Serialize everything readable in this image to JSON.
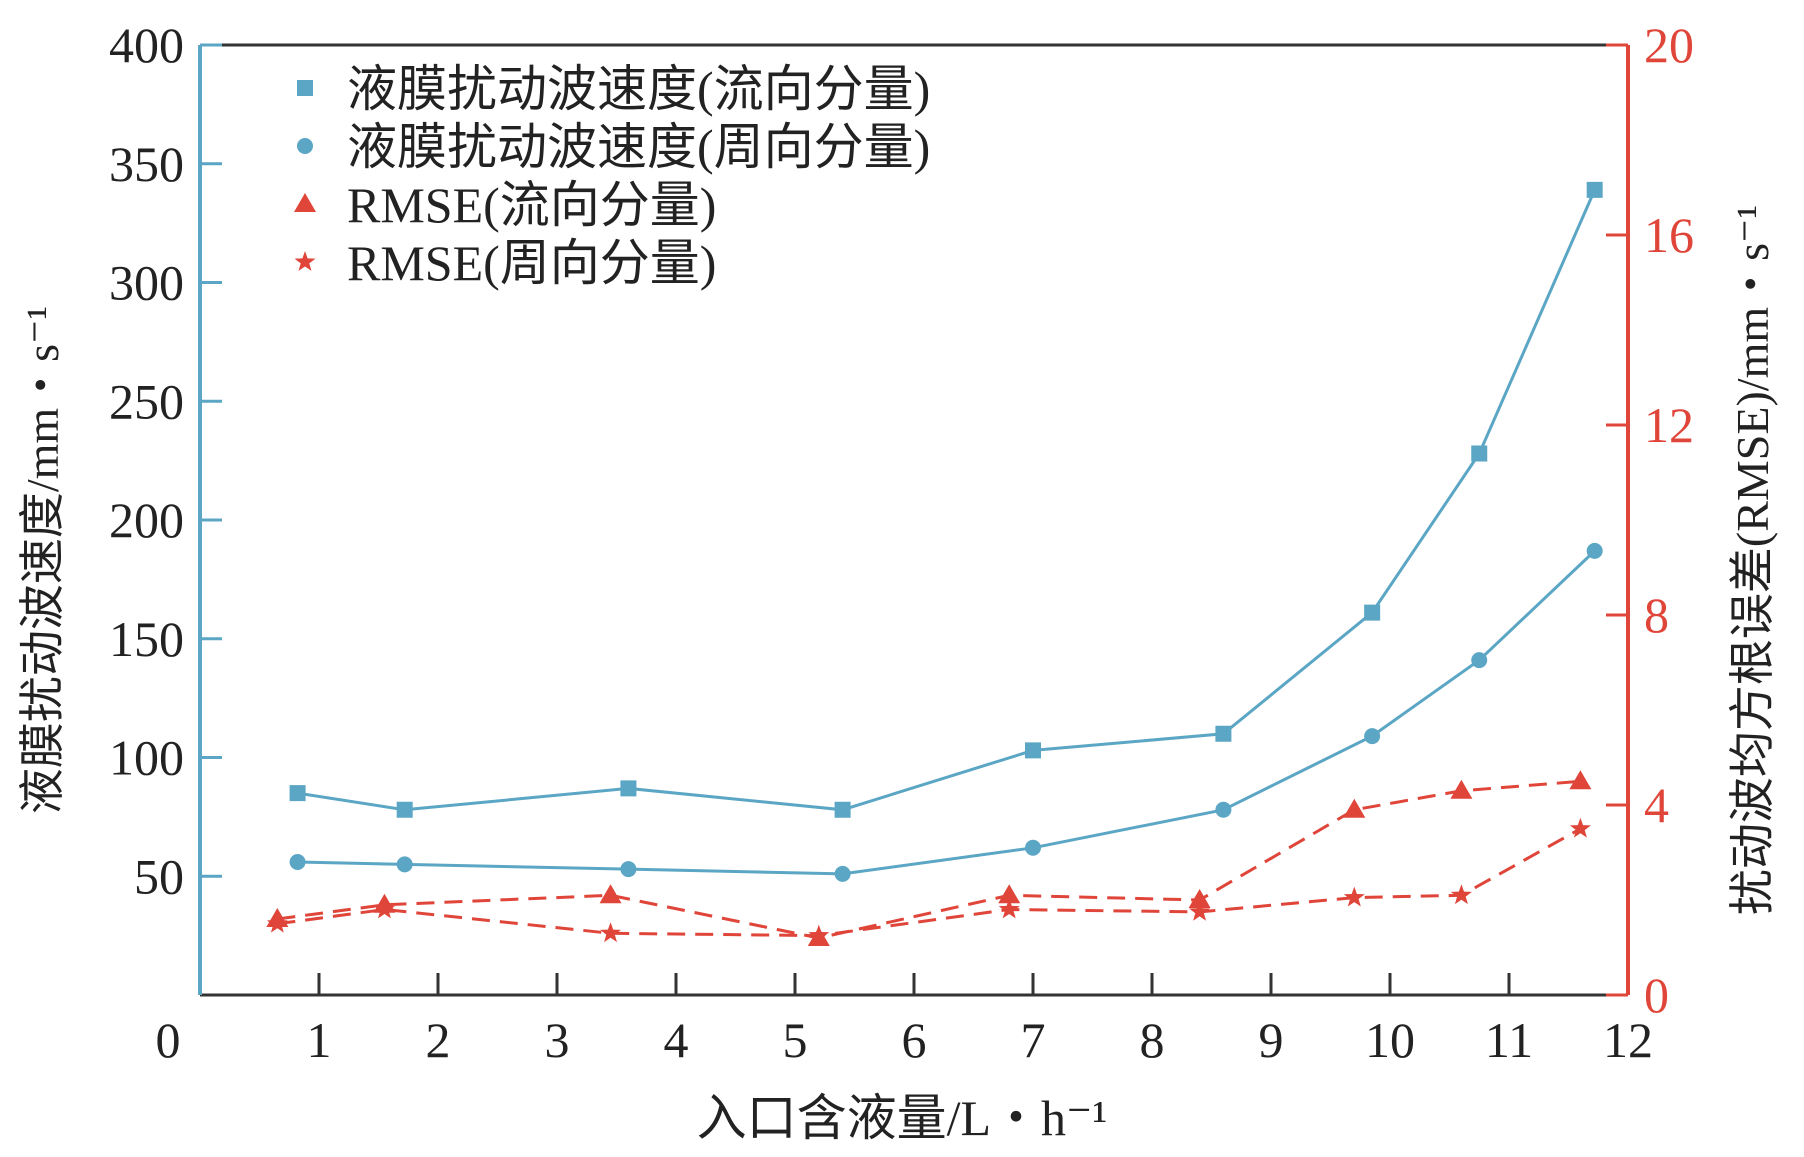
{
  "chart_data": {
    "type": "line",
    "x_axis": {
      "label": "入口含液量/L・h⁻¹",
      "range": [
        0,
        12
      ],
      "ticks": [
        0,
        1,
        2,
        3,
        4,
        5,
        6,
        7,
        8,
        9,
        10,
        11,
        12
      ]
    },
    "y_axis_left": {
      "label": "液膜扰动波速度/mm・s⁻¹",
      "range": [
        0,
        400
      ],
      "ticks": [
        50,
        100,
        150,
        200,
        250,
        300,
        350,
        400
      ],
      "color": "#5aa6c4"
    },
    "y_axis_right": {
      "label": "扰动波均方根误差(RMSE)/mm・s⁻¹",
      "range": [
        0,
        20
      ],
      "ticks": [
        0,
        4,
        8,
        12,
        16,
        20
      ],
      "color": "#e0453a"
    },
    "legend_position": "top-left",
    "series": [
      {
        "name": "液膜扰动波速度(流向分量)",
        "axis": "left",
        "marker": "square",
        "line": "solid",
        "color": "#5aa6c4",
        "x": [
          0.82,
          1.72,
          3.6,
          5.4,
          7.0,
          8.6,
          9.85,
          10.75,
          11.72
        ],
        "y": [
          85,
          78,
          87,
          78,
          103,
          110,
          161,
          228,
          339
        ]
      },
      {
        "name": "液膜扰动波速度(周向分量)",
        "axis": "left",
        "marker": "circle",
        "line": "solid",
        "color": "#5aa6c4",
        "x": [
          0.82,
          1.72,
          3.6,
          5.4,
          7.0,
          8.6,
          9.85,
          10.75,
          11.72
        ],
        "y": [
          56,
          55,
          53,
          51,
          62,
          78,
          109,
          141,
          187
        ]
      },
      {
        "name": "RMSE(流向分量)",
        "axis": "right",
        "marker": "triangle",
        "line": "dashed",
        "color": "#e0453a",
        "x": [
          0.65,
          1.55,
          3.45,
          5.2,
          6.8,
          8.4,
          9.7,
          10.6,
          11.6
        ],
        "y": [
          1.6,
          1.9,
          2.1,
          1.2,
          2.1,
          2.0,
          3.9,
          4.3,
          4.5
        ]
      },
      {
        "name": "RMSE(周向分量)",
        "axis": "right",
        "marker": "star",
        "line": "dashed",
        "color": "#e0453a",
        "x": [
          0.65,
          1.55,
          3.45,
          5.2,
          6.8,
          8.4,
          9.7,
          10.6,
          11.6
        ],
        "y": [
          1.5,
          1.8,
          1.3,
          1.25,
          1.8,
          1.75,
          2.05,
          2.1,
          3.5
        ]
      }
    ]
  }
}
